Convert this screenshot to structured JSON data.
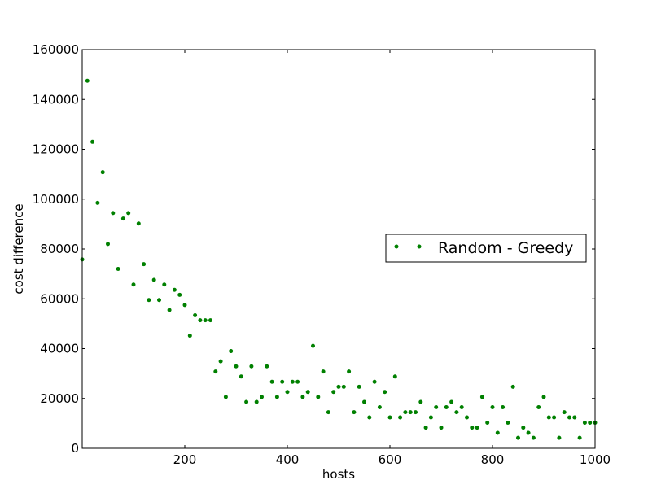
{
  "chart_data": {
    "type": "scatter",
    "title": "",
    "xlabel": "hosts",
    "ylabel": "cost difference",
    "xlim": [
      0,
      1000
    ],
    "ylim": [
      0,
      160000
    ],
    "xticks": [
      200,
      400,
      600,
      800,
      1000
    ],
    "xtick_labels": [
      "200",
      "400",
      "600",
      "800",
      "1000"
    ],
    "yticks": [
      0,
      20000,
      40000,
      60000,
      80000,
      100000,
      120000,
      140000,
      160000
    ],
    "ytick_labels": [
      "0",
      "20000",
      "40000",
      "60000",
      "80000",
      "100000",
      "120000",
      "140000",
      "160000"
    ],
    "grid": false,
    "legend_position": "center-right",
    "series": [
      {
        "name": "Random - Greedy",
        "color": "#008000",
        "marker": "dot",
        "x": [
          0,
          10,
          20,
          30,
          40,
          50,
          60,
          70,
          80,
          90,
          100,
          110,
          120,
          130,
          140,
          150,
          160,
          170,
          180,
          190,
          200,
          210,
          220,
          230,
          240,
          250,
          260,
          270,
          280,
          290,
          300,
          310,
          320,
          330,
          340,
          350,
          360,
          370,
          380,
          390,
          400,
          410,
          420,
          430,
          440,
          450,
          460,
          470,
          480,
          490,
          500,
          510,
          520,
          530,
          540,
          550,
          560,
          570,
          580,
          590,
          600,
          610,
          620,
          630,
          640,
          650,
          660,
          670,
          680,
          690,
          700,
          710,
          720,
          730,
          740,
          750,
          760,
          770,
          780,
          790,
          800,
          810,
          820,
          830,
          840,
          850,
          860,
          870,
          880,
          890,
          900,
          910,
          920,
          930,
          940,
          950,
          960,
          970,
          980,
          990,
          1000
        ],
        "y": [
          75800,
          147500,
          123000,
          98500,
          110800,
          82000,
          94400,
          72000,
          92200,
          94400,
          65700,
          90200,
          73900,
          59500,
          67600,
          59500,
          65700,
          55500,
          63600,
          61600,
          57500,
          45200,
          53400,
          51400,
          51400,
          51400,
          30800,
          34900,
          20600,
          39000,
          32900,
          28800,
          18600,
          32900,
          18600,
          20600,
          32900,
          26700,
          20600,
          26700,
          22600,
          26700,
          26700,
          20600,
          22600,
          41100,
          20600,
          30800,
          14500,
          22600,
          24700,
          24700,
          30800,
          14500,
          24700,
          18600,
          12400,
          26700,
          16500,
          22600,
          12400,
          28800,
          12400,
          14500,
          14500,
          14500,
          18600,
          8300,
          12400,
          16500,
          8300,
          16500,
          18600,
          14500,
          16500,
          12400,
          8300,
          8300,
          20600,
          10300,
          16500,
          6200,
          16500,
          10300,
          24700,
          4200,
          8300,
          6200,
          4200,
          16500,
          20600,
          12400,
          12400,
          4200,
          14500,
          12400,
          12400,
          4200,
          10300,
          10300,
          10300
        ]
      }
    ]
  }
}
